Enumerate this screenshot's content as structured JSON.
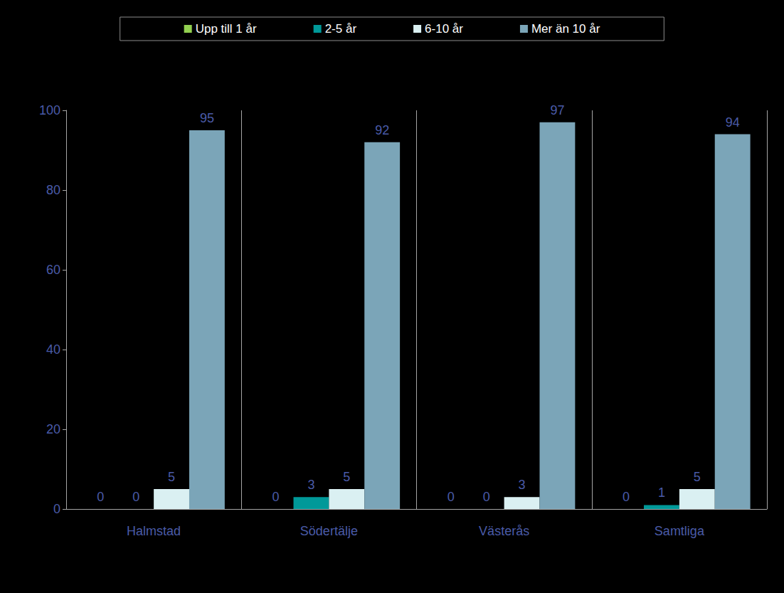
{
  "chart_data": {
    "type": "bar",
    "categories": [
      "Halmstad",
      "Södertälje",
      "Västerås",
      "Samtliga"
    ],
    "series": [
      {
        "name": "Upp till 1 år",
        "color": "#92D050",
        "values": [
          0,
          0,
          0,
          0
        ]
      },
      {
        "name": "2-5 år",
        "color": "#009999",
        "values": [
          0,
          3,
          0,
          1
        ]
      },
      {
        "name": "6-10 år",
        "color": "#DAF0F2",
        "values": [
          5,
          5,
          3,
          5
        ]
      },
      {
        "name": "Mer än 10 år",
        "color": "#7BA5B8",
        "values": [
          95,
          92,
          97,
          94
        ]
      }
    ],
    "ylim": [
      0,
      100
    ],
    "yticks": [
      0,
      20,
      40,
      60,
      80,
      100
    ],
    "grid": false,
    "legend": "top",
    "data_labels": true
  }
}
